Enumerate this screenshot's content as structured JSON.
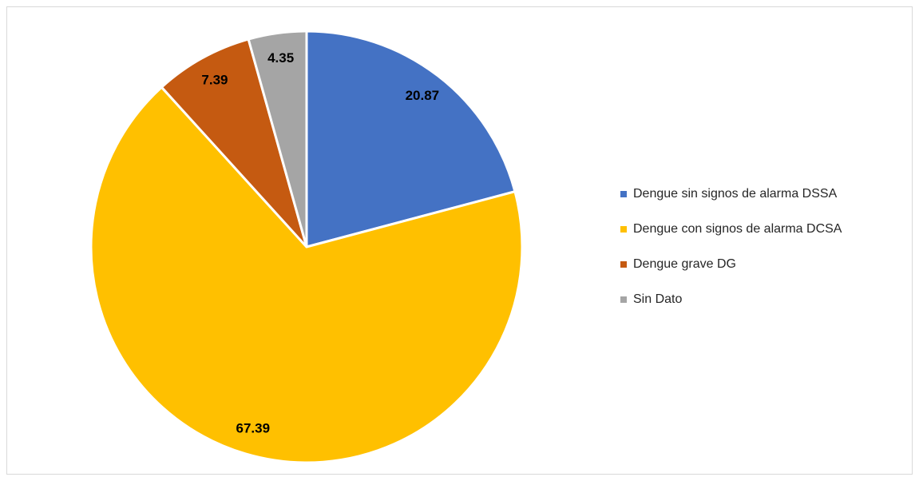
{
  "chart_data": {
    "type": "pie",
    "categories": [
      "Dengue sin signos de alarma DSSA",
      "Dengue con signos de alarma DCSA",
      "Dengue grave DG",
      "Sin Dato"
    ],
    "values": [
      20.87,
      67.39,
      7.39,
      4.35
    ],
    "colors": [
      "#4472c4",
      "#ffc000",
      "#c55a11",
      "#a5a5a5"
    ],
    "legend": "right"
  }
}
